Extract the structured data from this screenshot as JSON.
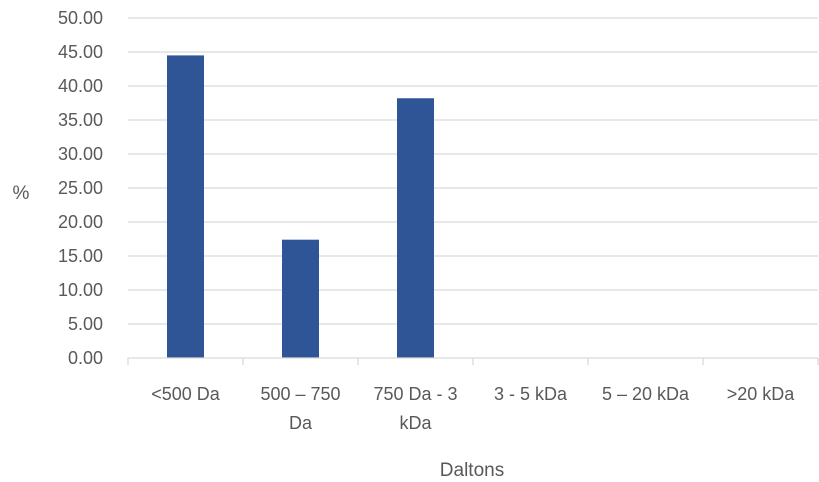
{
  "chart_data": {
    "type": "bar",
    "title": "",
    "xlabel": "Daltons",
    "ylabel": "%",
    "categories": [
      "<500 Da",
      "500 – 750 Da",
      "750 Da - 3 kDa",
      "3 - 5 kDa",
      "5 – 20 kDa",
      ">20 kDa"
    ],
    "category_lines": [
      [
        "<500 Da"
      ],
      [
        "500 – 750",
        "Da"
      ],
      [
        "750 Da - 3",
        "kDa"
      ],
      [
        "3 - 5 kDa"
      ],
      [
        "5 – 20 kDa"
      ],
      [
        ">20 kDa"
      ]
    ],
    "values": [
      44.5,
      17.4,
      38.2,
      0,
      0,
      0
    ],
    "ylim": [
      0,
      50
    ],
    "yticks": [
      "0.00",
      "5.00",
      "10.00",
      "15.00",
      "20.00",
      "25.00",
      "30.00",
      "35.00",
      "40.00",
      "45.00",
      "50.00"
    ],
    "grid": true,
    "legend": "none",
    "bar_color": "#2F5597",
    "grid_color": "#D9D9D9",
    "text_color": "#595959"
  }
}
